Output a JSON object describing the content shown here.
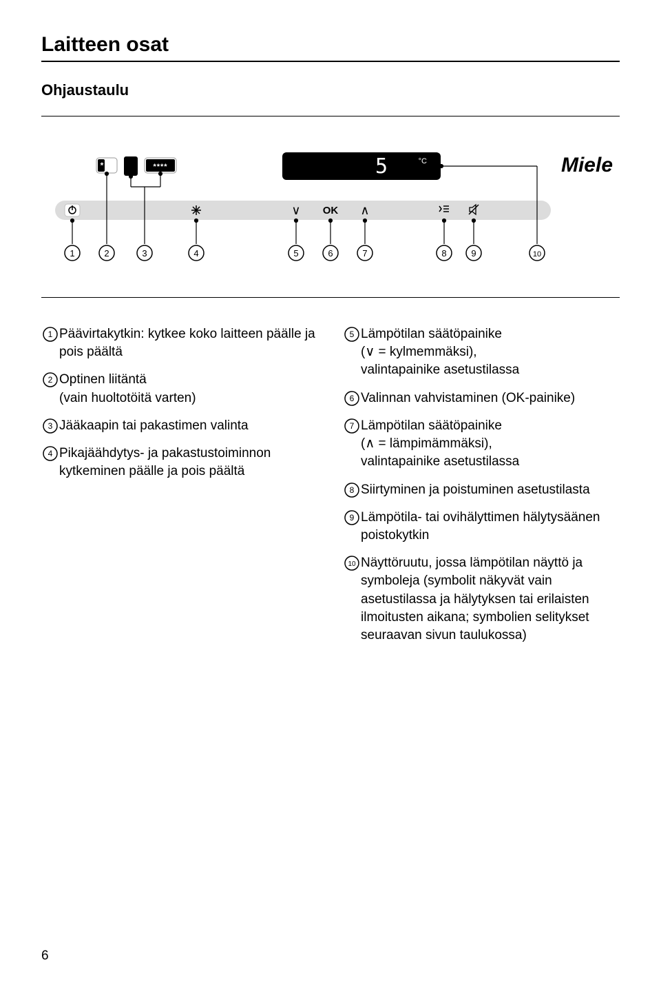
{
  "page": {
    "title": "Laitteen osat",
    "subtitle": "Ohjaustaulu",
    "page_number": "6"
  },
  "panel": {
    "brand": "Miele",
    "display_value": "5",
    "display_unit": "°C",
    "ok_label": "OK",
    "lead_lines_color": "#000000",
    "button_bar_color": "#dcdcdc",
    "display_bg": "#000000",
    "display_fg": "#ffffff",
    "asterisk_bg": "#000000",
    "asterisk_fg": "#ffffff"
  },
  "left_items": [
    {
      "n": "1",
      "text": "Päävirtakytkin: kytkee koko laitteen päälle ja pois päältä"
    },
    {
      "n": "2",
      "text": "Optinen liitäntä\n(vain huoltotöitä varten)"
    },
    {
      "n": "3",
      "text": "Jääkaapin tai pakastimen valinta"
    },
    {
      "n": "4",
      "text": "Pikajäähdytys- ja pakastustoiminnon kytkeminen päälle ja pois päältä"
    }
  ],
  "right_items": [
    {
      "n": "5",
      "text": "Lämpötilan säätöpainike\n(∨ = kylmemmäksi),\nvalintapainike asetustilassa"
    },
    {
      "n": "6",
      "text": "Valinnan vahvistaminen (OK-painike)"
    },
    {
      "n": "7",
      "text": "Lämpötilan säätöpainike\n(∧ = lämpimämmäksi),\nvalintapainike asetustilassa"
    },
    {
      "n": "8",
      "text": "Siirtyminen ja poistuminen asetustilasta"
    },
    {
      "n": "9",
      "text": "Lämpötila- tai ovihälyttimen hälytysäänen poistokytkin"
    },
    {
      "n": "10",
      "text": "Näyttöruutu, jossa lämpötilan näyttö ja symboleja (symbolit näkyvät vain asetustilassa ja hälytyksen tai erilaisten ilmoitusten aikana; symbolien selitykset seuraavan sivun taulukossa)"
    }
  ],
  "circled_style": {
    "stroke": "#000000",
    "stroke_width": 1.5,
    "radius": 10,
    "font_size": 12
  }
}
